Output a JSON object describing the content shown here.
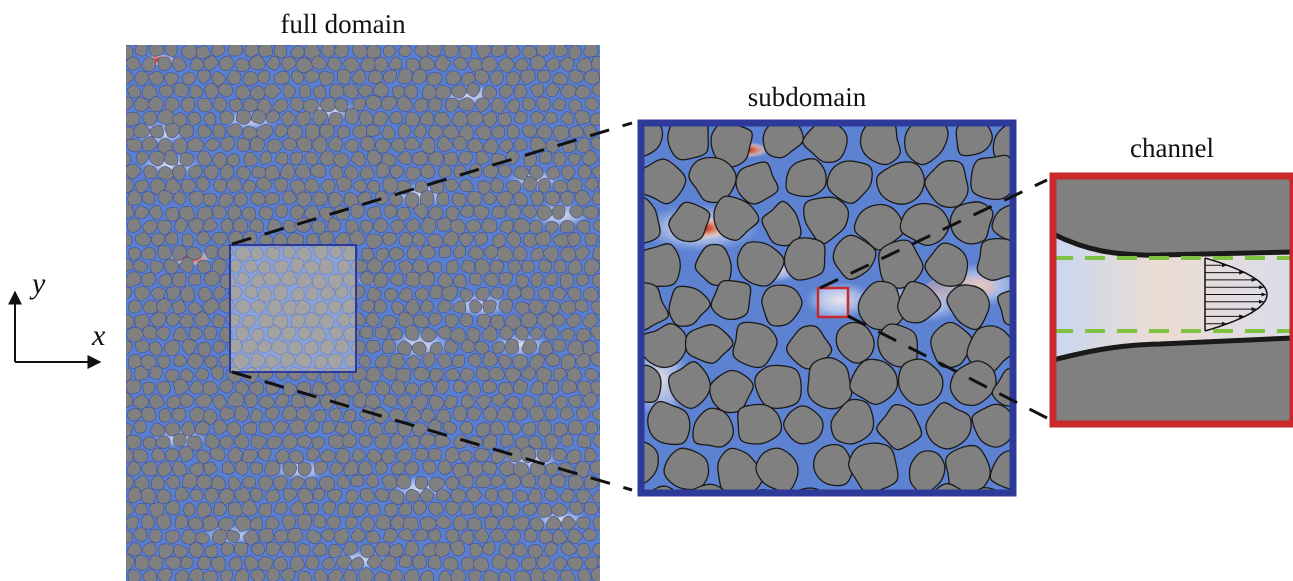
{
  "titles": {
    "full_domain": "full domain",
    "subdomain": "subdomain",
    "channel": "channel"
  },
  "axes": {
    "x": "x",
    "y": "y"
  },
  "colors": {
    "fluid_background": "#5b7fcf",
    "grain_fill": "#808080",
    "grain_outline": "#1a1a1a",
    "subdomain_frame": "#2e3a9a",
    "channel_frame": "#c62a2a",
    "channel_wall": "#1a1a1a",
    "channel_boundary_dashes": "#7fc241",
    "zoom_connector": "#111111",
    "high_velocity": "#b01010"
  },
  "icons": [
    "xy-axes-icon",
    "velocity-profile-icon"
  ]
}
